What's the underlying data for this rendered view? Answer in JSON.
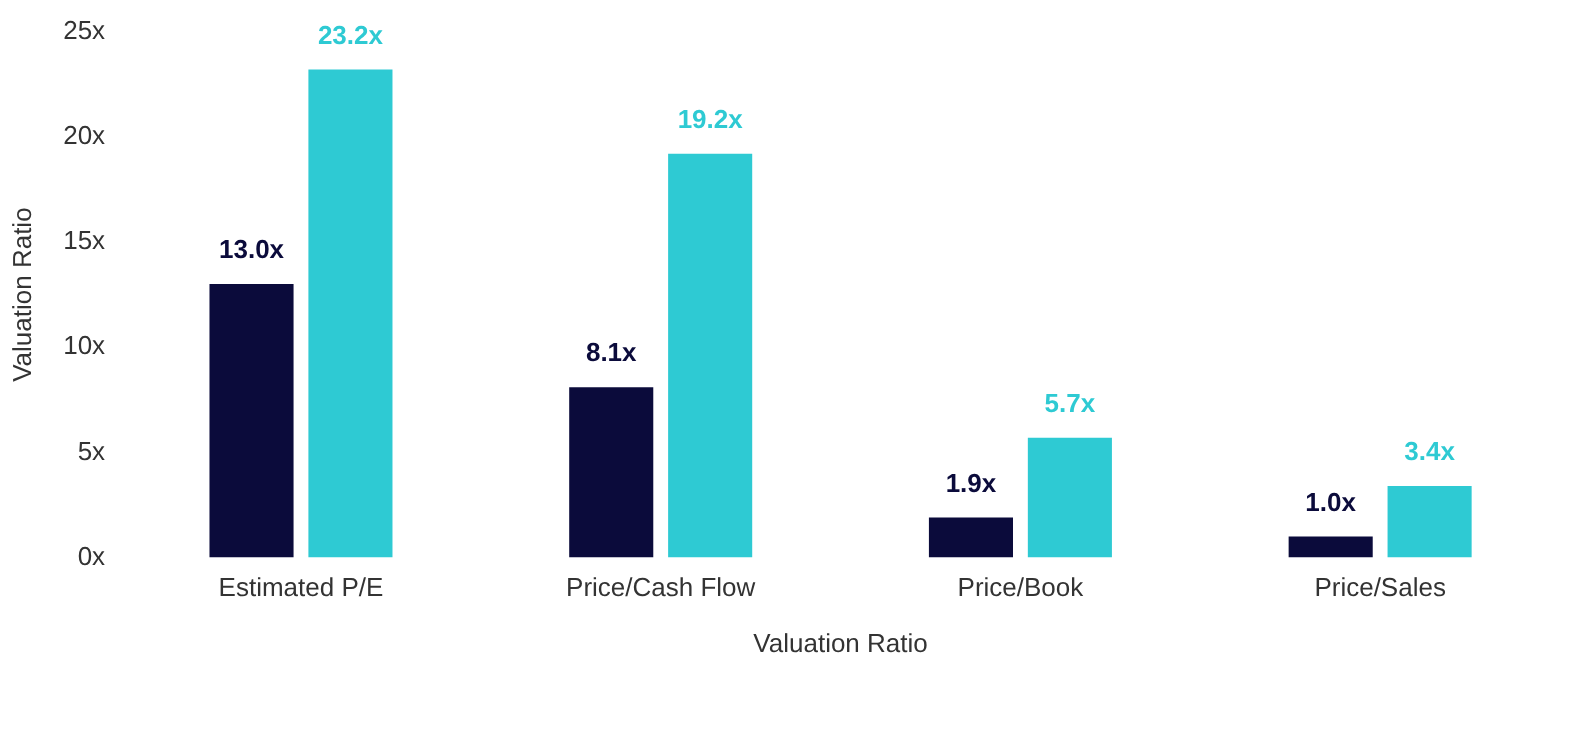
{
  "chart_data": {
    "type": "bar",
    "xlabel": "Valuation Ratio",
    "ylabel": "Valuation Ratio",
    "categories": [
      "Estimated P/E",
      "Price/Cash Flow",
      "Price/Book",
      "Price/Sales"
    ],
    "series": [
      {
        "color": "#0b0b3b",
        "values": [
          13.0,
          8.1,
          1.9,
          1.0
        ],
        "value_labels": [
          "13.0x",
          "8.1x",
          "1.9x",
          "1.0x"
        ]
      },
      {
        "color": "#2ecad3",
        "values": [
          23.2,
          19.2,
          5.7,
          3.4
        ],
        "value_labels": [
          "23.2x",
          "19.2x",
          "5.7x",
          "3.4x"
        ]
      }
    ],
    "ylim": [
      0,
      25
    ],
    "yticks": [
      {
        "value": 0,
        "label": "0x"
      },
      {
        "value": 5,
        "label": "5x"
      },
      {
        "value": 10,
        "label": "10x"
      },
      {
        "value": 15,
        "label": "15x"
      },
      {
        "value": 20,
        "label": "20x"
      },
      {
        "value": 25,
        "label": "25x"
      }
    ],
    "grid": false,
    "legend": false
  }
}
